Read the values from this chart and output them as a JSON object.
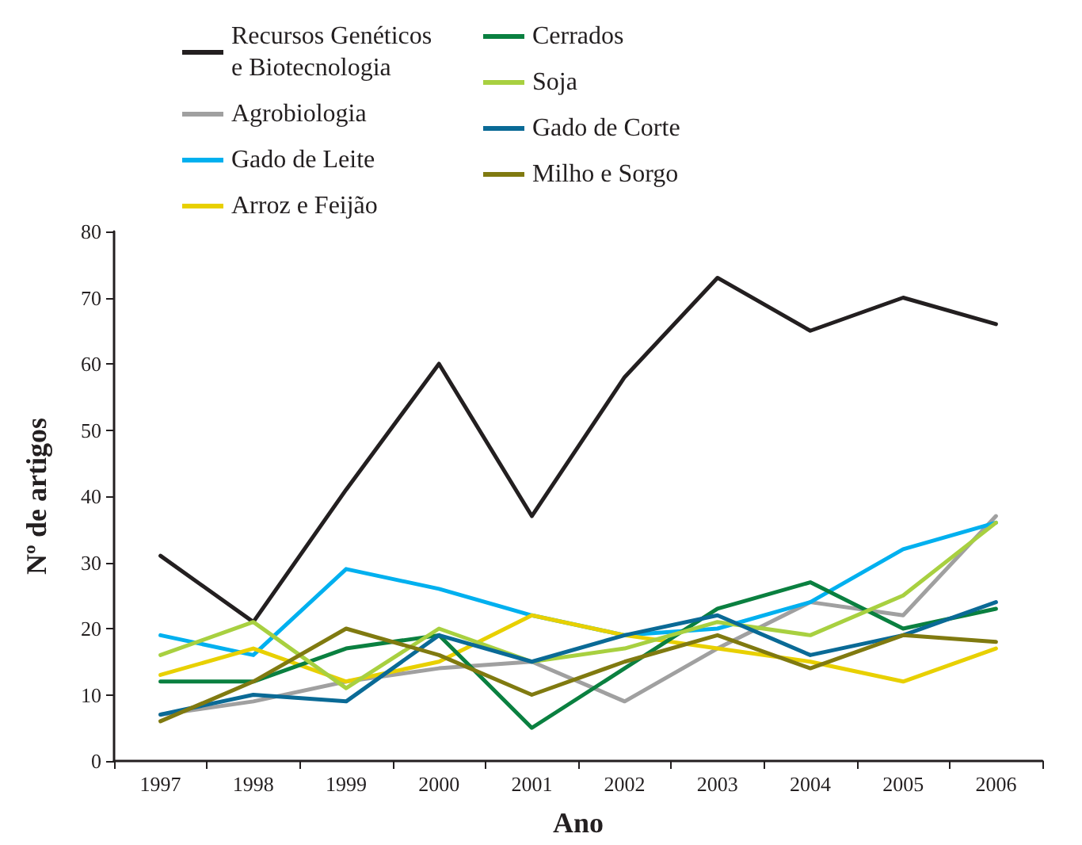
{
  "chart_data": {
    "type": "line",
    "xlabel": "Ano",
    "ylabel": "Nº de artigos",
    "categories": [
      "1997",
      "1998",
      "1999",
      "2000",
      "2001",
      "2002",
      "2003",
      "2004",
      "2005",
      "2006"
    ],
    "series": [
      {
        "name": "Recursos Genéticos e Biotecnologia",
        "color": "#231f20",
        "values": [
          31,
          21,
          41,
          60,
          37,
          58,
          73,
          65,
          70,
          66
        ]
      },
      {
        "name": "Agrobiologia",
        "color": "#a0a0a0",
        "values": [
          7,
          9,
          12,
          14,
          15,
          9,
          17,
          24,
          22,
          37
        ]
      },
      {
        "name": "Gado de Leite",
        "color": "#00b0ef",
        "values": [
          19,
          16,
          29,
          26,
          22,
          19,
          20,
          24,
          32,
          36
        ]
      },
      {
        "name": "Arroz e Feijão",
        "color": "#e8d000",
        "values": [
          13,
          17,
          12,
          15,
          22,
          19,
          17,
          15,
          12,
          17
        ]
      },
      {
        "name": "Cerrados",
        "color": "#0a8040",
        "values": [
          12,
          12,
          17,
          19,
          5,
          14,
          23,
          27,
          20,
          23
        ]
      },
      {
        "name": "Soja",
        "color": "#a8d040",
        "values": [
          16,
          21,
          11,
          20,
          15,
          17,
          21,
          19,
          25,
          36
        ]
      },
      {
        "name": "Gado de Corte",
        "color": "#0a6a96",
        "values": [
          7,
          10,
          9,
          19,
          15,
          19,
          22,
          16,
          19,
          24
        ]
      },
      {
        "name": "Milho e Sorgo",
        "color": "#807a10",
        "values": [
          6,
          12,
          20,
          16,
          10,
          15,
          19,
          14,
          19,
          18
        ]
      }
    ],
    "ylim": [
      0,
      80
    ],
    "yticks": [
      0,
      10,
      20,
      30,
      40,
      50,
      60,
      70,
      80
    ],
    "grid": false,
    "legend": "top left",
    "marker": "none",
    "line_style": "solid"
  }
}
